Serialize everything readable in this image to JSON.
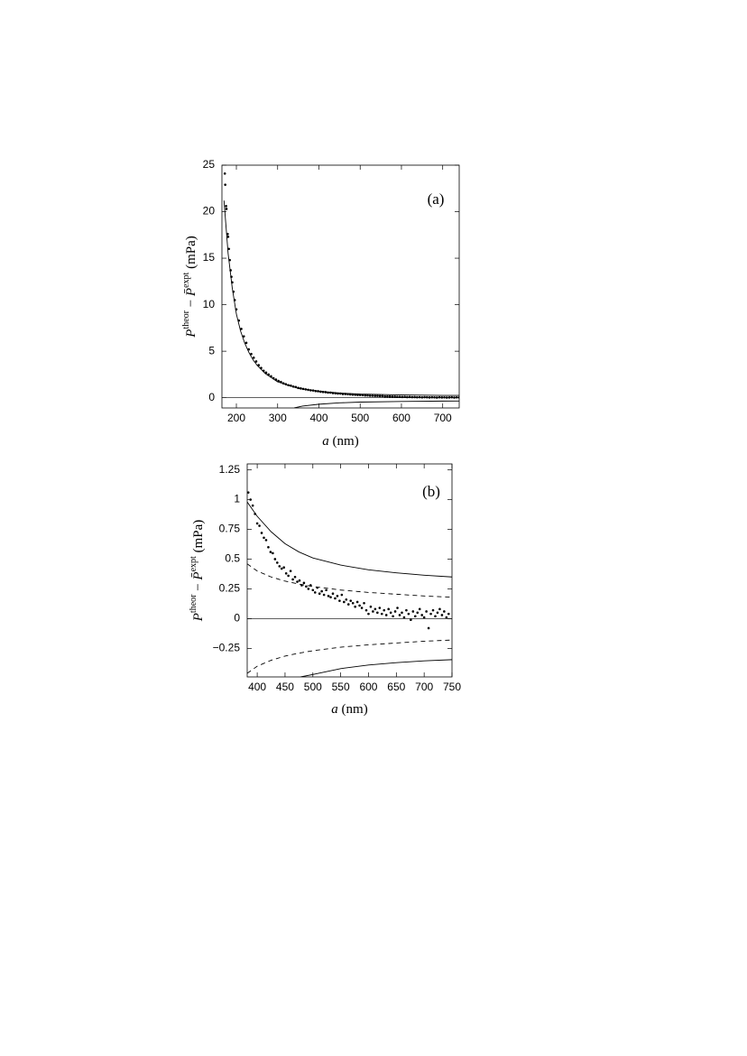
{
  "chart_data": [
    {
      "type": "scatter",
      "panel_label": "(a)",
      "xlabel": [
        "a",
        " (nm)"
      ],
      "ylabel": [
        "P",
        "theor",
        " − ",
        "P̄",
        "expt",
        " (mPa)"
      ],
      "xlim": [
        165,
        740
      ],
      "ylim": [
        -1.1,
        25
      ],
      "xticks": [
        200,
        300,
        400,
        500,
        600,
        700
      ],
      "yticks": [
        0,
        5,
        10,
        15,
        20,
        25
      ],
      "zero_line": true,
      "color": "#000000",
      "lines": [
        {
          "style": "solid",
          "x": [
            170,
            180,
            190,
            200,
            210,
            220,
            230,
            240,
            250,
            270,
            300,
            350,
            400,
            450,
            500,
            600,
            700,
            740
          ],
          "values": [
            21.2,
            15.5,
            11.8,
            9.0,
            7.2,
            5.9,
            4.9,
            4.1,
            3.5,
            2.6,
            1.7,
            1.0,
            0.7,
            0.5,
            0.4,
            0.3,
            0.25,
            0.25
          ]
        },
        {
          "style": "solid",
          "x": [
            340,
            360,
            400,
            450,
            500,
            600,
            700,
            740
          ],
          "values": [
            -1.1,
            -0.9,
            -0.7,
            -0.55,
            -0.47,
            -0.4,
            -0.36,
            -0.35
          ]
        }
      ],
      "points": {
        "x": [
          172,
          173,
          175,
          176,
          179,
          180,
          182,
          184,
          186,
          188,
          190,
          193,
          196,
          200,
          206,
          212,
          218,
          224,
          230,
          236,
          242,
          248,
          254,
          260,
          266,
          272,
          278,
          284,
          290,
          296,
          302,
          308,
          314,
          320,
          326,
          332,
          338,
          344,
          350,
          356,
          362,
          368,
          374,
          380,
          386,
          392,
          398,
          404,
          410,
          416,
          422,
          428,
          434,
          440,
          446,
          452,
          458,
          464,
          470,
          476,
          482,
          488,
          494,
          500,
          506,
          512,
          518,
          524,
          530,
          536,
          542,
          548,
          554,
          560,
          566,
          572,
          578,
          584,
          590,
          596,
          602,
          608,
          614,
          620,
          626,
          632,
          638,
          644,
          650,
          656,
          662,
          668,
          674,
          680,
          686,
          692,
          698,
          704,
          710,
          716,
          722,
          728,
          734,
          740
        ],
        "values": [
          24.1,
          22.9,
          20.6,
          20.3,
          17.6,
          17.3,
          16,
          14.8,
          13.7,
          13.0,
          12.4,
          11.4,
          10.5,
          9.5,
          8.3,
          7.4,
          6.6,
          5.9,
          5.2,
          4.7,
          4.3,
          3.9,
          3.5,
          3.2,
          2.9,
          2.7,
          2.5,
          2.3,
          2.1,
          1.95,
          1.8,
          1.7,
          1.55,
          1.45,
          1.35,
          1.3,
          1.2,
          1.15,
          1.05,
          1.0,
          0.95,
          0.9,
          0.85,
          0.8,
          0.78,
          0.72,
          0.7,
          0.65,
          0.62,
          0.6,
          0.55,
          0.55,
          0.5,
          0.48,
          0.45,
          0.45,
          0.4,
          0.4,
          0.38,
          0.36,
          0.33,
          0.32,
          0.3,
          0.3,
          0.28,
          0.25,
          0.25,
          0.22,
          0.22,
          0.2,
          0.2,
          0.18,
          0.18,
          0.15,
          0.15,
          0.14,
          0.12,
          0.12,
          0.1,
          0.1,
          0.08,
          0.1,
          0.07,
          0.08,
          0.06,
          0.07,
          0.05,
          0.06,
          0.04,
          0.06,
          0.05,
          0.03,
          0.05,
          0.04,
          0.02,
          0.05,
          0.03,
          0.04,
          0.02,
          0.03,
          0.05,
          0.02,
          0.04,
          0.03
        ]
      }
    },
    {
      "type": "scatter",
      "panel_label": "(b)",
      "xlabel": [
        "a",
        " (nm)"
      ],
      "ylabel": [
        "P",
        "theor",
        " − ",
        "P̄",
        "expt",
        " (mPa)"
      ],
      "xlim": [
        382,
        750
      ],
      "ylim": [
        -0.49,
        1.3
      ],
      "xticks": [
        400,
        450,
        500,
        550,
        600,
        650,
        700,
        750
      ],
      "yticks": [
        {
          "value": -0.25,
          "label": "−0.25"
        },
        0,
        0.25,
        0.5,
        0.75,
        1,
        1.25
      ],
      "zero_line": true,
      "color": "#000000",
      "lines": [
        {
          "style": "solid",
          "x": [
            382,
            400,
            425,
            450,
            475,
            500,
            550,
            600,
            650,
            700,
            750
          ],
          "values": [
            0.98,
            0.86,
            0.73,
            0.63,
            0.56,
            0.51,
            0.45,
            0.41,
            0.385,
            0.365,
            0.35
          ]
        },
        {
          "style": "solid",
          "x": [
            478,
            500,
            550,
            600,
            650,
            700,
            750
          ],
          "values": [
            -0.49,
            -0.47,
            -0.42,
            -0.39,
            -0.37,
            -0.355,
            -0.345
          ]
        },
        {
          "style": "dashed",
          "x": [
            382,
            400,
            425,
            450,
            475,
            500,
            550,
            600,
            650,
            700,
            750
          ],
          "values": [
            0.46,
            0.4,
            0.35,
            0.315,
            0.29,
            0.27,
            0.24,
            0.22,
            0.205,
            0.19,
            0.18
          ]
        },
        {
          "style": "dashed",
          "x": [
            382,
            400,
            425,
            450,
            475,
            500,
            550,
            600,
            650,
            700,
            750
          ],
          "values": [
            -0.46,
            -0.4,
            -0.35,
            -0.315,
            -0.29,
            -0.27,
            -0.24,
            -0.22,
            -0.205,
            -0.19,
            -0.18
          ]
        }
      ],
      "points": {
        "x": [
          384,
          388,
          392,
          396,
          400,
          404,
          408,
          412,
          416,
          420,
          424,
          428,
          432,
          436,
          440,
          444,
          448,
          452,
          456,
          460,
          464,
          468,
          472,
          476,
          480,
          484,
          488,
          492,
          496,
          500,
          504,
          508,
          512,
          516,
          520,
          524,
          528,
          532,
          536,
          540,
          544,
          548,
          552,
          556,
          560,
          564,
          568,
          572,
          576,
          580,
          584,
          588,
          592,
          596,
          600,
          604,
          608,
          612,
          616,
          620,
          624,
          628,
          632,
          636,
          640,
          644,
          648,
          652,
          656,
          660,
          664,
          668,
          672,
          676,
          680,
          684,
          688,
          692,
          696,
          700,
          704,
          708,
          712,
          716,
          720,
          724,
          728,
          732,
          736,
          740,
          744
        ],
        "values": [
          1.06,
          1.0,
          0.95,
          0.88,
          0.8,
          0.78,
          0.72,
          0.68,
          0.66,
          0.6,
          0.56,
          0.55,
          0.5,
          0.47,
          0.44,
          0.42,
          0.43,
          0.38,
          0.36,
          0.4,
          0.33,
          0.35,
          0.31,
          0.32,
          0.28,
          0.3,
          0.27,
          0.25,
          0.28,
          0.24,
          0.22,
          0.26,
          0.21,
          0.23,
          0.2,
          0.24,
          0.19,
          0.18,
          0.21,
          0.17,
          0.19,
          0.15,
          0.2,
          0.14,
          0.16,
          0.12,
          0.15,
          0.13,
          0.1,
          0.14,
          0.11,
          0.09,
          0.13,
          0.07,
          0.04,
          0.1,
          0.06,
          0.08,
          0.05,
          0.09,
          0.04,
          0.07,
          0.03,
          0.08,
          0.05,
          0.02,
          0.06,
          0.09,
          0.03,
          0.05,
          0.01,
          0.07,
          0.04,
          -0.01,
          0.06,
          0.02,
          0.05,
          0.08,
          0.03,
          0.01,
          0.06,
          -0.08,
          0.04,
          0.07,
          0.02,
          0.05,
          0.08,
          0.03,
          0.06,
          0.01,
          0.04
        ]
      }
    }
  ]
}
